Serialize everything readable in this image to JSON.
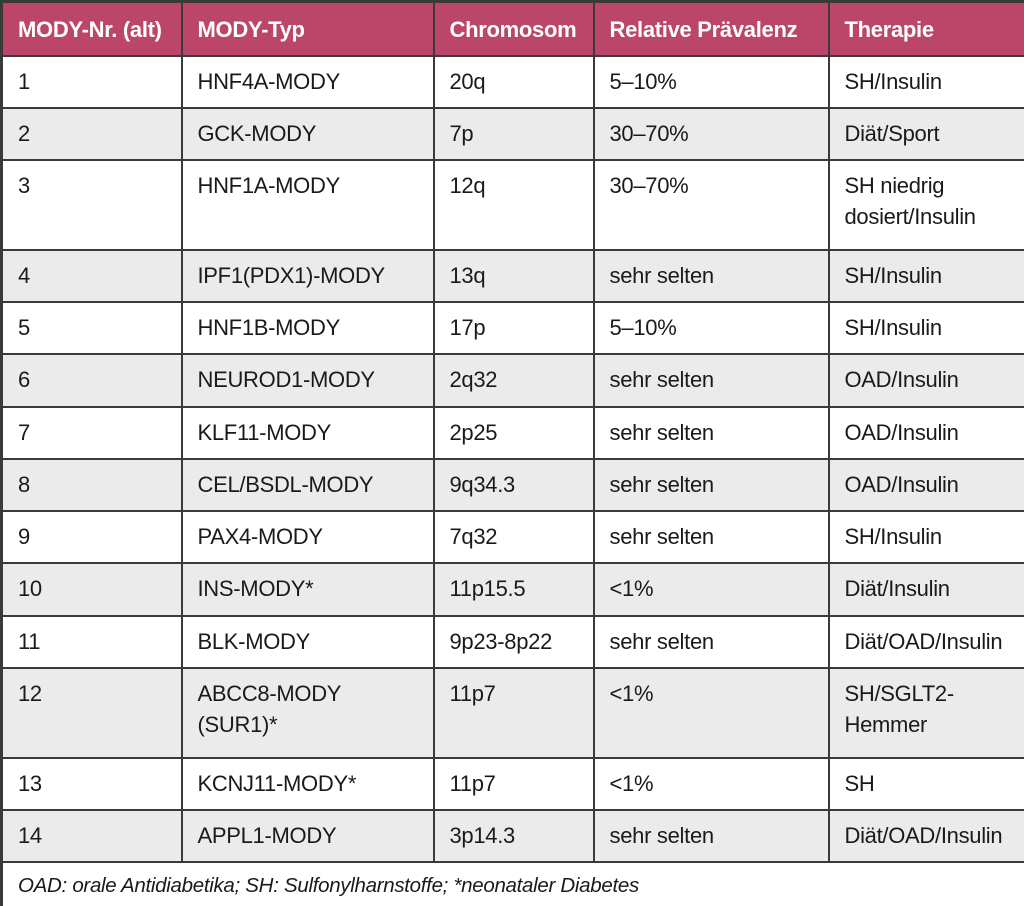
{
  "table": {
    "columns": [
      "MODY-Nr. (alt)",
      "MODY-Typ",
      "Chromosom",
      "Relative Prävalenz",
      "Therapie"
    ],
    "rows": [
      [
        "1",
        "HNF4A-MODY",
        "20q",
        "5–10%",
        "SH/Insulin"
      ],
      [
        "2",
        "GCK-MODY",
        "7p",
        "30–70%",
        "Diät/Sport"
      ],
      [
        "3",
        "HNF1A-MODY",
        "12q",
        "30–70%",
        "SH niedrig dosiert/Insulin"
      ],
      [
        "4",
        "IPF1(PDX1)-MODY",
        "13q",
        "sehr selten",
        "SH/Insulin"
      ],
      [
        "5",
        "HNF1B-MODY",
        "17p",
        "5–10%",
        "SH/Insulin"
      ],
      [
        "6",
        "NEUROD1-MODY",
        "2q32",
        "sehr selten",
        "OAD/Insulin"
      ],
      [
        "7",
        "KLF11-MODY",
        "2p25",
        "sehr selten",
        "OAD/Insulin"
      ],
      [
        "8",
        "CEL/BSDL-MODY",
        "9q34.3",
        "sehr selten",
        "OAD/Insulin"
      ],
      [
        "9",
        "PAX4-MODY",
        "7q32",
        "sehr selten",
        "SH/Insulin"
      ],
      [
        "10",
        "INS-MODY*",
        "11p15.5",
        "<1%",
        "Diät/Insulin"
      ],
      [
        "11",
        "BLK-MODY",
        "9p23-8p22",
        "sehr selten",
        "Diät/OAD/Insulin"
      ],
      [
        "12",
        "ABCC8-MODY (SUR1)*",
        "11p7",
        "<1%",
        "SH/SGLT2-Hemmer"
      ],
      [
        "13",
        "KCNJ11-MODY*",
        "11p7",
        "<1%",
        "SH"
      ],
      [
        "14",
        "APPL1-MODY",
        "3p14.3",
        "sehr selten",
        "Diät/OAD/Insulin"
      ]
    ],
    "tall_row_indices": [
      2,
      11
    ],
    "footnote": "OAD: orale Antidiabetika; SH: Sulfonylharnstoffe; *neonataler Diabetes"
  },
  "colors": {
    "header_bg": "#bc4669",
    "header_text": "#ffffff",
    "row_alt_bg": "#ebebeb",
    "border": "#3a3a3a",
    "page_bg": "#d9d9d9",
    "text": "#1a1a1a"
  }
}
